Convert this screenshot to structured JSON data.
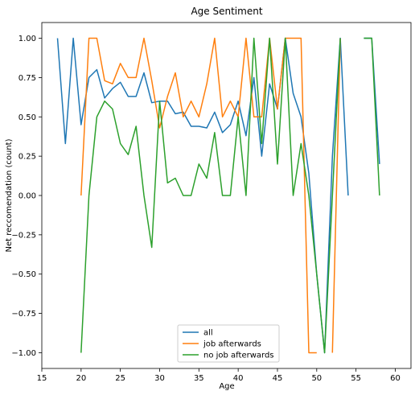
{
  "chart_data": {
    "type": "line",
    "title": "Age Sentiment",
    "xlabel": "Age",
    "ylabel": "Net reccomendation (count)",
    "xlim": [
      15,
      62
    ],
    "ylim": [
      -1.1,
      1.1
    ],
    "xticks": [
      15,
      20,
      25,
      30,
      35,
      40,
      45,
      50,
      55,
      60
    ],
    "yticks": [
      -1.0,
      -0.75,
      -0.5,
      -0.25,
      0.0,
      0.25,
      0.5,
      0.75,
      1.0
    ],
    "xtick_labels": [
      "15",
      "20",
      "25",
      "30",
      "35",
      "40",
      "45",
      "50",
      "55",
      "60"
    ],
    "ytick_labels": [
      "−1.00",
      "−0.75",
      "−0.50",
      "−0.25",
      "0.00",
      "0.25",
      "0.50",
      "0.75",
      "1.00"
    ],
    "grid": false,
    "legend_position": "bottom-center",
    "series": [
      {
        "name": "all",
        "color": "#1f77b4",
        "points": [
          [
            17,
            1.0
          ],
          [
            18,
            0.33
          ],
          [
            19,
            1.0
          ],
          [
            20,
            0.45
          ],
          [
            21,
            0.75
          ],
          [
            22,
            0.8
          ],
          [
            23,
            0.62
          ],
          [
            24,
            0.68
          ],
          [
            25,
            0.72
          ],
          [
            26,
            0.63
          ],
          [
            27,
            0.63
          ],
          [
            28,
            0.78
          ],
          [
            29,
            0.59
          ],
          [
            30,
            0.6
          ],
          [
            31,
            0.6
          ],
          [
            32,
            0.52
          ],
          [
            33,
            0.53
          ],
          [
            34,
            0.44
          ],
          [
            35,
            0.44
          ],
          [
            36,
            0.43
          ],
          [
            37,
            0.53
          ],
          [
            38,
            0.4
          ],
          [
            39,
            0.45
          ],
          [
            40,
            0.6
          ],
          [
            41,
            0.38
          ],
          [
            42,
            0.75
          ],
          [
            43,
            0.25
          ],
          [
            44,
            0.71
          ],
          [
            45,
            0.55
          ],
          [
            46,
            1.0
          ],
          [
            47,
            0.65
          ],
          [
            48,
            0.5
          ],
          [
            49,
            0.14
          ],
          [
            50,
            -0.5
          ],
          [
            51,
            -1.0
          ],
          [
            52,
            0.25
          ],
          [
            53,
            1.0
          ],
          [
            54,
            0.0
          ],
          [
            55,
            null
          ],
          [
            56,
            1.0
          ],
          [
            57,
            1.0
          ],
          [
            58,
            0.2
          ]
        ]
      },
      {
        "name": "job afterwards",
        "color": "#ff7f0e",
        "points": [
          [
            20,
            0.0
          ],
          [
            21,
            1.0
          ],
          [
            22,
            1.0
          ],
          [
            23,
            0.73
          ],
          [
            24,
            0.71
          ],
          [
            25,
            0.84
          ],
          [
            26,
            0.75
          ],
          [
            27,
            0.75
          ],
          [
            28,
            1.0
          ],
          [
            29,
            0.73
          ],
          [
            30,
            0.43
          ],
          [
            31,
            0.63
          ],
          [
            32,
            0.78
          ],
          [
            33,
            0.5
          ],
          [
            34,
            0.6
          ],
          [
            35,
            0.5
          ],
          [
            36,
            0.71
          ],
          [
            37,
            1.0
          ],
          [
            38,
            0.5
          ],
          [
            39,
            0.6
          ],
          [
            40,
            0.5
          ],
          [
            41,
            1.0
          ],
          [
            42,
            0.5
          ],
          [
            43,
            0.5
          ],
          [
            44,
            1.0
          ],
          [
            45,
            0.55
          ],
          [
            46,
            1.0
          ],
          [
            47,
            1.0
          ],
          [
            48,
            1.0
          ],
          [
            49,
            -1.0
          ],
          [
            50,
            -1.0
          ],
          [
            51,
            null
          ],
          [
            52,
            -1.0
          ],
          [
            53,
            1.0
          ]
        ]
      },
      {
        "name": "no job afterwards",
        "color": "#2ca02c",
        "points": [
          [
            20,
            -1.0
          ],
          [
            21,
            0.0
          ],
          [
            22,
            0.5
          ],
          [
            23,
            0.6
          ],
          [
            24,
            0.55
          ],
          [
            25,
            0.33
          ],
          [
            26,
            0.26
          ],
          [
            27,
            0.44
          ],
          [
            28,
            0.0
          ],
          [
            29,
            -0.33
          ],
          [
            30,
            0.6
          ],
          [
            31,
            0.08
          ],
          [
            32,
            0.11
          ],
          [
            33,
            0.0
          ],
          [
            34,
            0.0
          ],
          [
            35,
            0.2
          ],
          [
            36,
            0.11
          ],
          [
            37,
            0.4
          ],
          [
            38,
            0.0
          ],
          [
            39,
            0.0
          ],
          [
            40,
            0.5
          ],
          [
            41,
            0.0
          ],
          [
            42,
            1.0
          ],
          [
            43,
            0.33
          ],
          [
            44,
            1.0
          ],
          [
            45,
            0.2
          ],
          [
            46,
            1.0
          ],
          [
            47,
            0.0
          ],
          [
            48,
            0.33
          ],
          [
            49,
            0.0
          ],
          [
            50,
            -0.5
          ],
          [
            51,
            -1.0
          ],
          [
            52,
            0.0
          ],
          [
            53,
            1.0
          ],
          [
            54,
            null
          ],
          [
            55,
            null
          ],
          [
            56,
            1.0
          ],
          [
            57,
            1.0
          ],
          [
            58,
            0.0
          ]
        ]
      }
    ]
  }
}
